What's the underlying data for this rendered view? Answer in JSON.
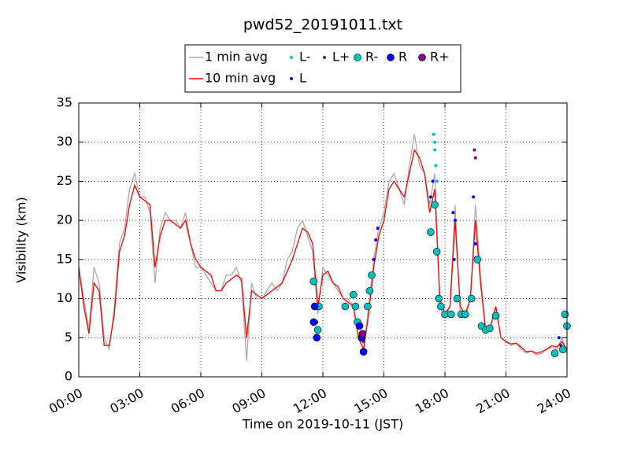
{
  "chart_data": {
    "type": "line",
    "title": "pwd52_20191011.txt",
    "x_label": "Time on 2019-10-11 (JST)",
    "y_label": "Visibility (km)",
    "xlim": [
      0,
      24
    ],
    "ylim": [
      0,
      35
    ],
    "xticks": [
      {
        "value": 0,
        "label": "00:00"
      },
      {
        "value": 3,
        "label": "03:00"
      },
      {
        "value": 6,
        "label": "06:00"
      },
      {
        "value": 9,
        "label": "09:00"
      },
      {
        "value": 12,
        "label": "12:00"
      },
      {
        "value": 15,
        "label": "15:00"
      },
      {
        "value": 18,
        "label": "18:00"
      },
      {
        "value": 21,
        "label": "21:00"
      },
      {
        "value": 24,
        "label": "24:00"
      }
    ],
    "yticks": [
      0,
      5,
      10,
      15,
      20,
      25,
      30,
      35
    ],
    "grid": true,
    "legend": "top",
    "x": [
      0,
      0.25,
      0.5,
      0.75,
      1,
      1.25,
      1.5,
      1.75,
      2,
      2.25,
      2.5,
      2.75,
      3,
      3.25,
      3.5,
      3.75,
      4,
      4.25,
      4.5,
      4.75,
      5,
      5.25,
      5.5,
      5.75,
      6,
      6.25,
      6.5,
      6.75,
      7,
      7.25,
      7.5,
      7.75,
      8,
      8.25,
      8.5,
      8.75,
      9,
      9.25,
      9.5,
      9.75,
      10,
      10.25,
      10.5,
      10.75,
      11,
      11.25,
      11.5,
      11.75,
      12,
      12.25,
      12.5,
      12.75,
      13,
      13.25,
      13.5,
      13.75,
      14,
      14.25,
      14.5,
      14.75,
      15,
      15.25,
      15.5,
      15.75,
      16,
      16.25,
      16.5,
      16.75,
      17,
      17.25,
      17.5,
      17.75,
      18,
      18.25,
      18.5,
      18.75,
      19,
      19.25,
      19.5,
      19.75,
      20,
      20.25,
      20.5,
      20.75,
      21,
      21.25,
      21.5,
      21.75,
      22,
      22.25,
      22.5,
      22.75,
      23,
      23.25,
      23.5,
      23.75,
      24
    ],
    "series": [
      {
        "name": "1 min avg",
        "kind": "line",
        "color": "#aaaaaa",
        "values": [
          14,
          10,
          6,
          14,
          12,
          5,
          3.5,
          9,
          17,
          19,
          24,
          26,
          23,
          23,
          21,
          12,
          19,
          21,
          20,
          20,
          19,
          21,
          17,
          14,
          14,
          13,
          12,
          11,
          11,
          13,
          13,
          14,
          12,
          2,
          12,
          10,
          10,
          11,
          12,
          11,
          12,
          15,
          16,
          19,
          20,
          18,
          16,
          8,
          14,
          13,
          12,
          11,
          10,
          10,
          9,
          5,
          3.5,
          9,
          15,
          19,
          21,
          25,
          26,
          24,
          22,
          27,
          31,
          27,
          26,
          22,
          26,
          9,
          7.5,
          9,
          22,
          8,
          7.5,
          10,
          22,
          13,
          6,
          6.5,
          9,
          5,
          4.5,
          4,
          4.3,
          3.5,
          3,
          3.3,
          2.8,
          3,
          3.5,
          3.8,
          3.5,
          5,
          3
        ]
      },
      {
        "name": "10 min avg",
        "kind": "line",
        "color": "#ff0000",
        "values": [
          14,
          9,
          5.5,
          12,
          11,
          4,
          4,
          8,
          16,
          18,
          22,
          24.5,
          23,
          22.5,
          22,
          14,
          18,
          20,
          20,
          19.5,
          19,
          20,
          17,
          15,
          14,
          13.5,
          13,
          11,
          11,
          12,
          12.5,
          13,
          12.5,
          5,
          11,
          10.5,
          10,
          10.5,
          11,
          11.5,
          12,
          13.5,
          15,
          17,
          19,
          18.5,
          17,
          9,
          13,
          13.5,
          12,
          11.5,
          10,
          9.5,
          9,
          5,
          3.5,
          8,
          14,
          18,
          20,
          24,
          25,
          24,
          23,
          26,
          29,
          28,
          26,
          21,
          24,
          10,
          8,
          9,
          20,
          9,
          8,
          10,
          20,
          12,
          6,
          6.5,
          9,
          5,
          4.5,
          4.2,
          4.3,
          3.8,
          3.2,
          3.3,
          3.0,
          3.2,
          3.5,
          4.0,
          3.8,
          4.5,
          3.5
        ]
      },
      {
        "name": "L-",
        "kind": "scatter",
        "size": "small",
        "color": "#00bfbf",
        "x": [
          17.45,
          17.5,
          17.55,
          17.6,
          17.5
        ],
        "values": [
          31,
          29,
          27,
          25,
          30
        ]
      },
      {
        "name": "L",
        "kind": "scatter",
        "size": "small",
        "color": "#0000ff",
        "x": [
          11.6,
          11.7,
          14.5,
          14.6,
          14.7,
          17.3,
          17.4,
          18.4,
          18.5,
          18.45,
          19.4,
          19.5,
          23.6,
          23.7
        ],
        "values": [
          9,
          7,
          15,
          17.5,
          19,
          23,
          25,
          21,
          20,
          15,
          23,
          17,
          5,
          4
        ]
      },
      {
        "name": "L+",
        "kind": "scatter",
        "size": "small",
        "color": "#800080",
        "x": [
          19.45,
          19.5,
          14.0
        ],
        "values": [
          29,
          28,
          4.5
        ]
      },
      {
        "name": "R-",
        "kind": "scatter",
        "size": "big",
        "color": "#00bfbf",
        "x": [
          11.55,
          11.8,
          11.75,
          13.1,
          13.5,
          13.6,
          13.7,
          14.2,
          14.3,
          14.4,
          17.3,
          17.5,
          17.6,
          17.7,
          17.8,
          18.0,
          18.3,
          18.6,
          18.8,
          19.0,
          19.3,
          19.6,
          19.8,
          20.0,
          20.2,
          20.5,
          23.4,
          23.8,
          23.9,
          24.0
        ],
        "values": [
          12.2,
          9,
          6,
          9,
          10.5,
          9,
          7,
          9,
          11,
          13,
          18.5,
          22,
          16,
          10,
          9,
          8,
          8,
          10,
          8,
          8,
          10,
          15,
          6.5,
          6,
          6.2,
          7.8,
          3,
          3.5,
          8,
          6.5
        ]
      },
      {
        "name": "R",
        "kind": "scatter",
        "size": "big",
        "color": "#0000ff",
        "x": [
          11.6,
          11.7,
          11.55,
          13.8,
          13.9,
          14.0
        ],
        "values": [
          9,
          5,
          7,
          6.5,
          5,
          3.2
        ]
      },
      {
        "name": "R+",
        "kind": "scatter",
        "size": "big",
        "color": "#800080",
        "x": [
          13.95
        ],
        "values": [
          5.5
        ]
      }
    ]
  }
}
